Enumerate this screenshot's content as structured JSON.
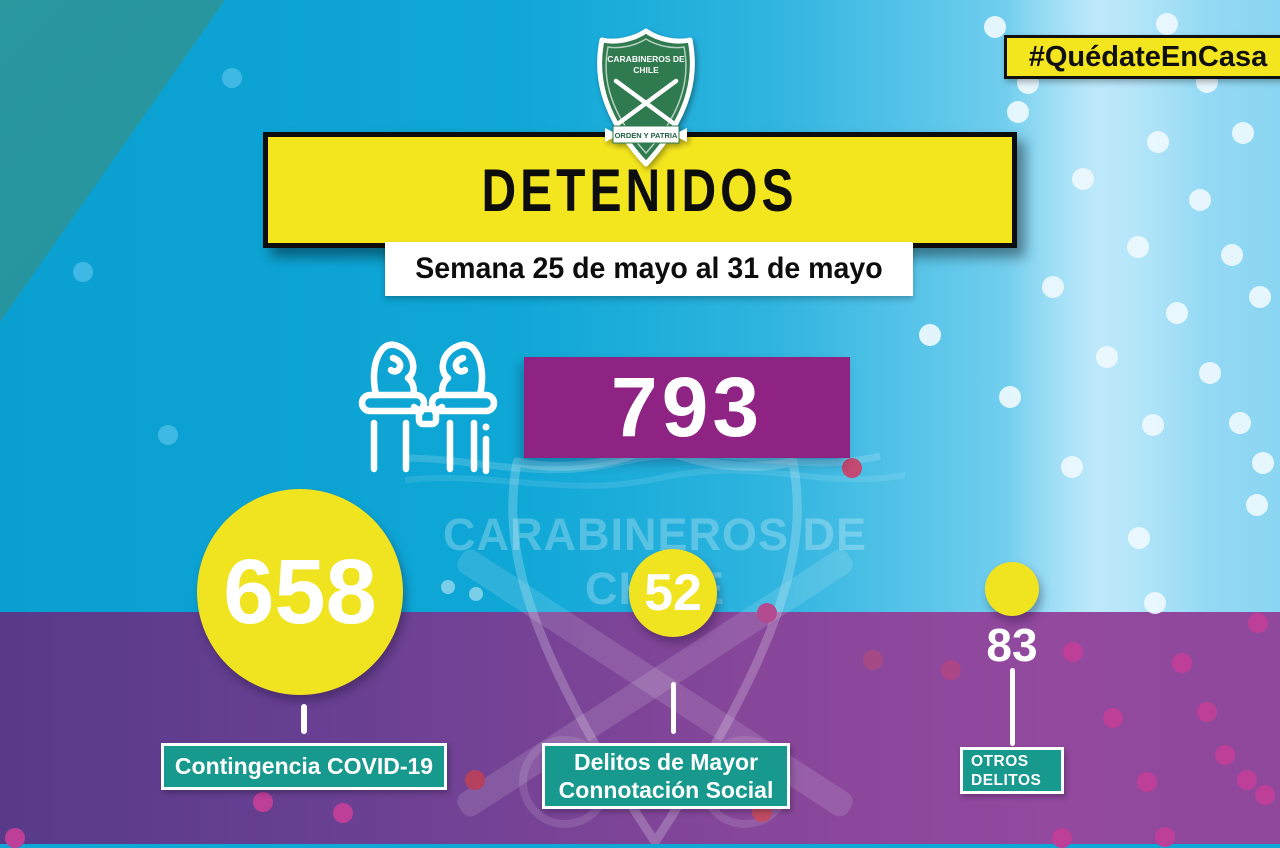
{
  "chart_data": {
    "type": "bar",
    "title": "DETENIDOS",
    "subtitle": "Semana 25 de mayo al 31 de mayo",
    "total": 793,
    "categories": [
      "Contingencia COVID-19",
      "Delitos de Mayor Connotación Social",
      "Otros Delitos"
    ],
    "values": [
      658,
      52,
      83
    ],
    "legend_position": "none",
    "annotations": [
      "#QuédateEnCasa",
      "CARABINEROS DE CHILE",
      "ORDEN Y PATRIA"
    ]
  },
  "hashtag_banner": {
    "label": "#QuédateEnCasa"
  },
  "logo": {
    "line1": "CARABINEROS DE",
    "line2": "CHILE",
    "motto": "ORDEN Y PATRIA"
  },
  "header": {
    "title": "DETENIDOS",
    "subtitle": "Semana 25 de mayo al 31 de mayo"
  },
  "total": {
    "value": "793",
    "icon": "handcuffs-icon"
  },
  "watermark": {
    "line1": "CARABINEROS DE",
    "line2": "CHILE"
  },
  "stats": [
    {
      "value": "658",
      "label": "Contingencia COVID-19"
    },
    {
      "value": "52",
      "label_line1": "Delitos de Mayor",
      "label_line2": "Connotación Social"
    },
    {
      "value": "83",
      "label_line1": "OTROS",
      "label_line2": "DELITOS"
    }
  ],
  "colors": {
    "yellow": "#f4e61e",
    "magenta_box": "#8e2383",
    "teal_label": "#18998e",
    "cyan_bg": "#0fa7d6",
    "purple_bg": "#8a479b",
    "badge_green": "#2f7a4e"
  }
}
